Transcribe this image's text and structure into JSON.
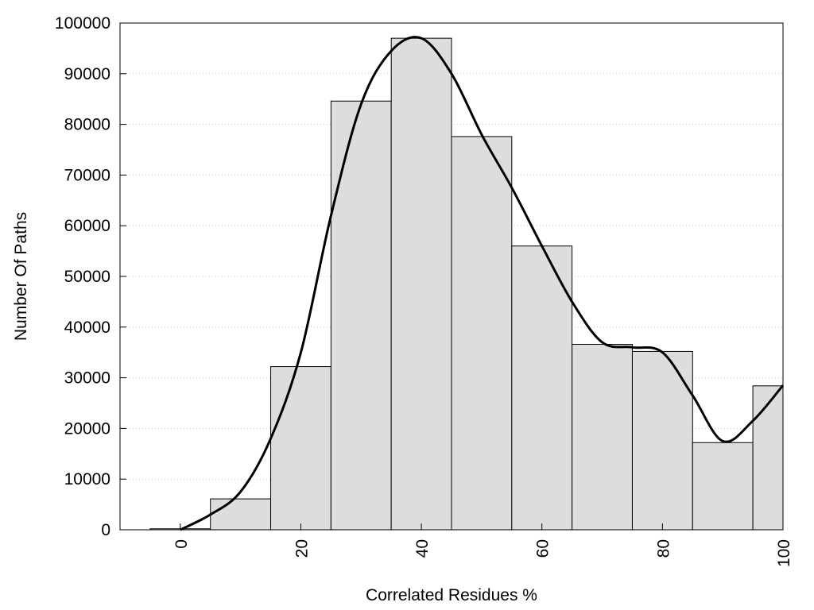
{
  "chart_data": {
    "type": "bar",
    "title": "",
    "xlabel": "Correlated Residues %",
    "ylabel": "Number Of Paths",
    "xlim": [
      -10,
      100
    ],
    "ylim": [
      0,
      100000
    ],
    "x_ticks": [
      "0",
      "20",
      "40",
      "60",
      "80",
      "100"
    ],
    "y_ticks": [
      "0",
      "10000",
      "20000",
      "30000",
      "40000",
      "50000",
      "60000",
      "70000",
      "80000",
      "90000",
      "100000"
    ],
    "grid": "horizontal dotted",
    "bin_width": 10,
    "categories": [
      "0",
      "10",
      "20",
      "30",
      "40",
      "50",
      "60",
      "70",
      "80",
      "90",
      "100"
    ],
    "values": [
      200,
      6100,
      32200,
      84600,
      97000,
      77600,
      56000,
      36600,
      35200,
      17200,
      28400
    ],
    "series": [
      {
        "type": "line",
        "x": [
          0,
          5,
          10,
          15,
          20,
          25,
          30,
          35,
          40,
          45,
          50,
          55,
          60,
          65,
          70,
          75,
          80,
          85,
          90,
          95,
          100
        ],
        "values": [
          0,
          3000,
          7500,
          18000,
          35000,
          62000,
          84000,
          94500,
          97000,
          90000,
          78000,
          67500,
          56000,
          45000,
          37000,
          36000,
          35000,
          26500,
          17500,
          21500,
          28500
        ]
      }
    ],
    "colors": {
      "bar_fill": "#dddddd",
      "bar_stroke": "#000000",
      "line": "#000000",
      "grid": "#c8c8c8"
    }
  }
}
